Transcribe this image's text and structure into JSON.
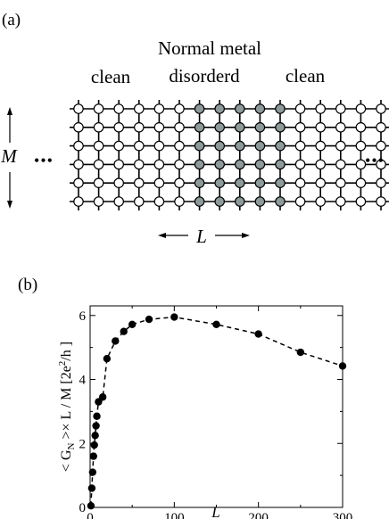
{
  "panel_a": {
    "label": "(a)",
    "title_line1": "Normal metal",
    "title_line2": "disorderd",
    "left_region": "clean",
    "right_region": "clean",
    "dim_vertical": "M",
    "dim_horizontal": "L",
    "ellipsis": "•••",
    "lattice": {
      "rows": 6,
      "columns": 17,
      "disordered_columns": [
        6,
        7,
        8,
        9,
        10
      ],
      "clean_color": "#ffffff",
      "disordered_color": "#8e9a9a"
    }
  },
  "panel_b": {
    "label": "(b)",
    "ylabel_parts": {
      "pre": "< G",
      "sub": "N",
      "mid": " >× L / M  [2e",
      "sup": "2",
      "post": "/h ]"
    }
  },
  "chart_data": {
    "type": "scatter",
    "line_style": "dashed",
    "xlabel": "L",
    "xlim": [
      0,
      300
    ],
    "ylim": [
      0,
      6.3
    ],
    "xticks": [
      0,
      100,
      200,
      300
    ],
    "yticks": [
      0,
      2,
      4,
      6
    ],
    "x": [
      1,
      2,
      3,
      4,
      5,
      6,
      7,
      8,
      10,
      15,
      20,
      30,
      40,
      50,
      70,
      100,
      150,
      200,
      250,
      300
    ],
    "y": [
      0.05,
      0.6,
      1.1,
      1.6,
      1.95,
      2.25,
      2.55,
      2.85,
      3.3,
      3.45,
      4.65,
      5.2,
      5.5,
      5.72,
      5.88,
      5.95,
      5.72,
      5.42,
      4.85,
      4.42
    ]
  }
}
